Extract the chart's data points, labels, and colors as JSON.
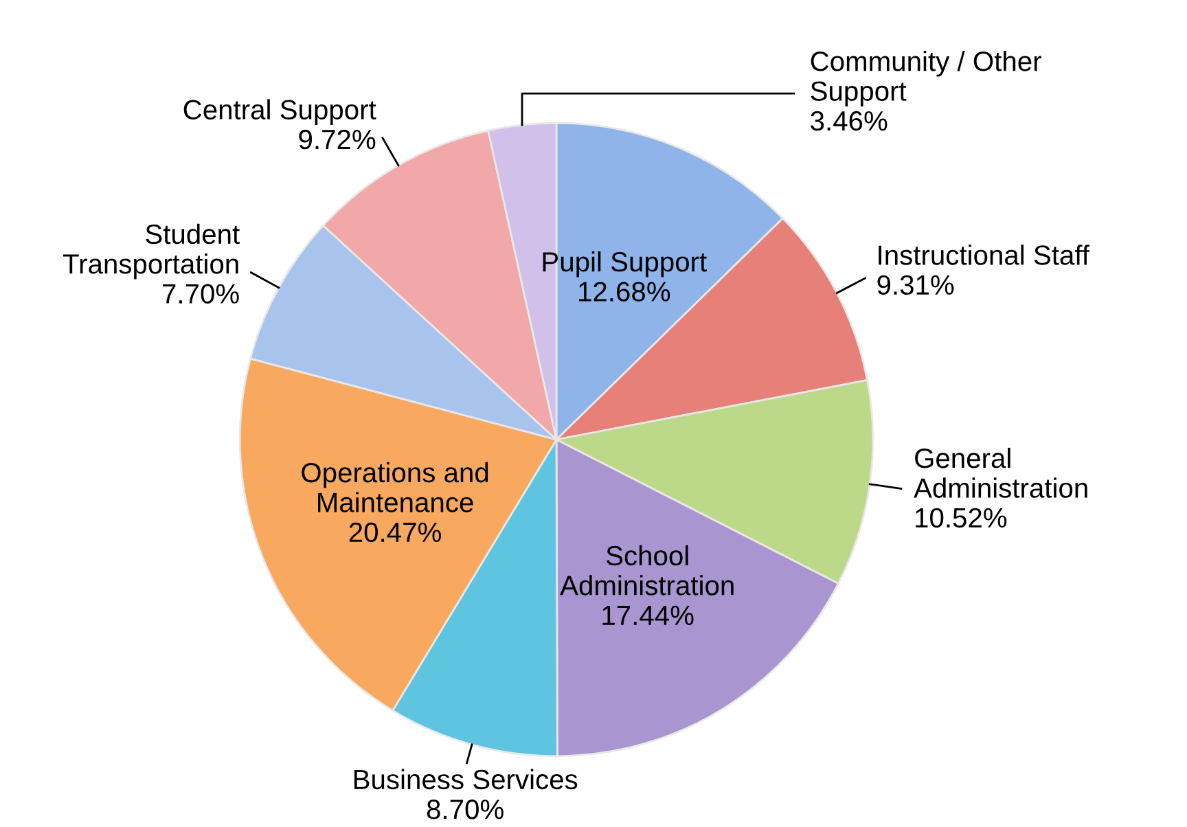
{
  "chart_data": {
    "type": "pie",
    "categories": [
      "Pupil Support",
      "Instructional Staff",
      "General\nAdministration",
      "School\nAdministration",
      "Business Services",
      "Operations and\nMaintenance",
      "Student\nTransportation",
      "Central Support",
      "Community / Other\nSupport"
    ],
    "values": [
      12.68,
      9.31,
      10.52,
      17.44,
      8.7,
      20.47,
      7.7,
      9.72,
      3.46
    ],
    "value_labels": [
      "12.68%",
      "9.31%",
      "10.52%",
      "17.44%",
      "8.70%",
      "20.47%",
      "7.70%",
      "9.72%",
      "3.46%"
    ],
    "colors": [
      "#8fb4ea",
      "#e8807a",
      "#bcd98a",
      "#a995cf",
      "#5ec4e0",
      "#f9a860",
      "#a8c4ec",
      "#f2a8a8",
      "#d0c0ea"
    ]
  }
}
